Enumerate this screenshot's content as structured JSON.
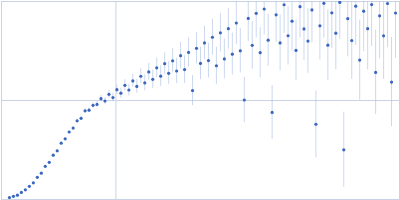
{
  "chart_data": {
    "type": "scatter",
    "x": [
      8,
      12,
      16,
      20,
      24,
      28,
      32,
      36,
      40,
      44,
      48,
      52,
      56,
      60,
      64,
      68,
      72,
      76,
      80,
      84,
      88,
      92,
      96,
      100,
      104,
      108,
      112,
      116,
      120,
      124,
      128,
      132,
      136,
      140,
      144,
      148,
      152,
      156,
      160,
      164,
      168,
      172,
      176,
      180,
      184,
      188,
      192,
      196,
      200,
      204,
      208,
      212,
      216,
      220,
      224,
      228,
      232,
      236,
      240,
      244,
      248,
      252,
      256,
      260,
      264,
      268,
      272,
      276,
      280,
      284,
      288,
      292,
      296,
      300,
      304,
      308,
      312,
      316,
      320,
      324,
      328,
      332,
      336,
      340,
      344,
      348,
      352,
      356,
      360,
      364,
      368,
      372,
      376,
      380,
      384,
      388,
      392,
      396
    ],
    "values": [
      2,
      3.2,
      4.4,
      7.1,
      9.8,
      13.3,
      16.8,
      22.4,
      26.6,
      33.5,
      37.6,
      44.8,
      49.2,
      56.9,
      61.3,
      68.2,
      72.1,
      79.5,
      82.0,
      89.6,
      90.2,
      95.1,
      96.0,
      101.8,
      99.5,
      106.2,
      103.0,
      110.9,
      107.4,
      115.3,
      110.6,
      119.8,
      114.2,
      124.5,
      117.8,
      128.9,
      121.4,
      133.0,
      124.6,
      137.2,
      127.5,
      140.1,
      129.8,
      145.3,
      131.2,
      148.6,
      110.0,
      152.7,
      137.4,
      158.2,
      140.3,
      163.9,
      135.1,
      168.4,
      142.0,
      172.6,
      146.8,
      178.3,
      150.2,
      100.5,
      182.9,
      155.7,
      188.1,
      148.3,
      192.4,
      160.9,
      88.0,
      186.5,
      158.2,
      196.7,
      165.4,
      180.1,
      150.6,
      194.8,
      172.3,
      160.0,
      191.5,
      76.0,
      175.4,
      198.2,
      155.9,
      188.6,
      168.0,
      199.1,
      50.2,
      182.7,
      160.5,
      195.3,
      140.8,
      190.2,
      172.6,
      196.9,
      128.4,
      185.5,
      165.3,
      198.0,
      118.6,
      188.4
    ],
    "errors": [
      0.3,
      0.3,
      0.3,
      0.4,
      0.4,
      0.5,
      0.5,
      0.6,
      0.6,
      0.7,
      0.8,
      0.9,
      1,
      1.1,
      1.2,
      1.4,
      1.5,
      1.7,
      1.9,
      2.1,
      2.3,
      2.6,
      2.9,
      3.2,
      3.5,
      3.9,
      4.3,
      4.7,
      5.1,
      5.6,
      6,
      6.5,
      7,
      7.5,
      8,
      8.6,
      9.2,
      9.8,
      10.4,
      11,
      11.6,
      12.2,
      12.8,
      13.4,
      14,
      14.6,
      15.2,
      15.8,
      16.4,
      17,
      17.6,
      18.2,
      18.8,
      19.4,
      20,
      20.6,
      21.2,
      21.8,
      22.4,
      23,
      23.6,
      24.2,
      24.8,
      25.4,
      26,
      26.6,
      27.2,
      27.8,
      28.4,
      29,
      29.6,
      30.2,
      30.8,
      31.4,
      32,
      32.6,
      33.2,
      33.8,
      34.4,
      35,
      35.6,
      36.2,
      36.8,
      37.4,
      38,
      38.6,
      39.2,
      39.8,
      40.4,
      41,
      41.6,
      42.2,
      42.8,
      43.4,
      44,
      44.6,
      45.2,
      45.8
    ],
    "xlim": [
      0,
      400
    ],
    "ylim": [
      0,
      200
    ],
    "xticks": [
      115
    ],
    "yticks": [
      100
    ],
    "grid": true,
    "tick_labels": false,
    "color": "#3a66c0",
    "marker": "circle"
  }
}
